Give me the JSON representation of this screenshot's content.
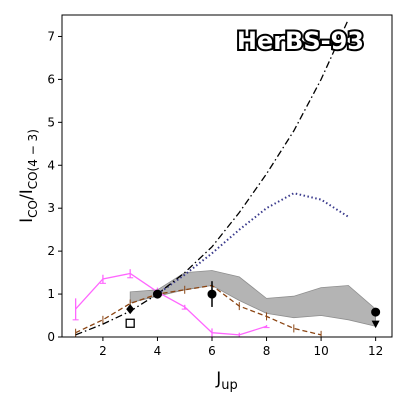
{
  "chart_data": {
    "type": "line",
    "title": "HerBS-93",
    "xlabel": {
      "main": "J",
      "sub": "up"
    },
    "ylabel": {
      "main": "I",
      "sub1": "CO",
      "mid": "/I",
      "sub2": "CO(4 − 3)"
    },
    "xlim": [
      0.5,
      12.6
    ],
    "ylim": [
      0,
      7.5
    ],
    "xticks": [
      2,
      4,
      6,
      8,
      10,
      12
    ],
    "yticks": [
      0,
      1,
      2,
      3,
      4,
      5,
      6,
      7
    ],
    "grid": false,
    "colors": {
      "band": "#b4b4b4",
      "magenta": "#ff66ff",
      "brown": "#8b4513",
      "dotted": "#3a3a8c",
      "dashdot": "#000000",
      "points": "#000000"
    },
    "series": [
      {
        "style": "band",
        "x": [
          3,
          4,
          5,
          6,
          7,
          8,
          9,
          10,
          11,
          12
        ],
        "lower": [
          0.8,
          0.95,
          1.1,
          1.2,
          0.85,
          0.55,
          0.45,
          0.5,
          0.4,
          0.25
        ],
        "upper": [
          1.05,
          1.1,
          1.5,
          1.55,
          1.4,
          0.9,
          0.95,
          1.15,
          1.2,
          0.65
        ]
      },
      {
        "style": "magenta",
        "x": [
          1,
          2,
          3,
          4,
          5,
          6,
          7,
          8
        ],
        "y": [
          0.65,
          1.35,
          1.48,
          1.05,
          0.7,
          0.1,
          0.05,
          0.25
        ],
        "yerr": [
          0.25,
          0.1,
          0.1,
          0.1,
          0.05,
          0.1,
          0.05,
          0.03
        ]
      },
      {
        "style": "brown",
        "x": [
          1,
          2,
          3,
          4,
          5,
          6,
          7,
          8,
          9,
          10
        ],
        "y": [
          0.1,
          0.4,
          0.78,
          1.0,
          1.1,
          1.2,
          0.72,
          0.48,
          0.2,
          0.05
        ]
      },
      {
        "style": "dotted",
        "x": [
          4,
          5,
          6,
          7,
          8,
          9,
          10,
          11
        ],
        "y": [
          1.0,
          1.45,
          1.95,
          2.5,
          3.0,
          3.35,
          3.2,
          2.8
        ]
      },
      {
        "style": "dashdot",
        "x": [
          1,
          2,
          3,
          4,
          5,
          6,
          7,
          8,
          9,
          10,
          11
        ],
        "y": [
          0.05,
          0.3,
          0.6,
          1.0,
          1.5,
          2.1,
          2.9,
          3.8,
          4.8,
          6.0,
          7.4
        ]
      }
    ],
    "points": [
      {
        "x": 3,
        "y": 0.65,
        "marker": "diamond",
        "yerr": 0.0
      },
      {
        "x": 3,
        "y": 0.32,
        "marker": "square-open",
        "yerr": 0.0
      },
      {
        "x": 4,
        "y": 1.0,
        "marker": "circle",
        "yerr": 0.08
      },
      {
        "x": 6,
        "y": 1.0,
        "marker": "circle",
        "yerr": 0.3
      },
      {
        "x": 12,
        "y": 0.58,
        "marker": "circle",
        "yerr": 0.0
      },
      {
        "x": 12,
        "y": 0.3,
        "marker": "triangle-down",
        "yerr": 0.0
      }
    ]
  }
}
